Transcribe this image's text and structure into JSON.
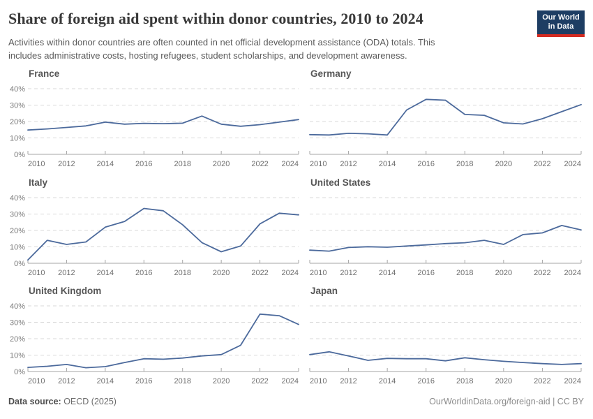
{
  "header": {
    "title": "Share of foreign aid spent within donor countries, 2010 to 2024",
    "subtitle_line1": "Activities within donor countries are often counted in net official development assistance (ODA) totals. This",
    "subtitle_line2": "includes administrative costs, hosting refugees, student scholarships, and development awareness."
  },
  "logo": {
    "line1": "Our World",
    "line2": "in Data",
    "bg_color": "#1d3d63",
    "accent_color": "#d42b21"
  },
  "footer": {
    "source_label": "Data source:",
    "source_value": " OECD (2025)",
    "attribution": "OurWorldinData.org/foreign-aid | CC BY"
  },
  "chart_data": {
    "type": "line",
    "layout": "small multiples, 2 columns x 3 rows",
    "unit": "%",
    "x": [
      2010,
      2011,
      2012,
      2013,
      2014,
      2015,
      2016,
      2017,
      2018,
      2019,
      2020,
      2021,
      2022,
      2023,
      2024
    ],
    "x_tick_labels": [
      "2010",
      "2012",
      "2014",
      "2016",
      "2018",
      "2020",
      "2022",
      "2024"
    ],
    "y_ticks": [
      0,
      10,
      20,
      30,
      40
    ],
    "y_tick_labels": [
      "0%",
      "10%",
      "20%",
      "30%",
      "40%"
    ],
    "ylim": [
      0,
      40
    ],
    "grid": "horizontal dashed gridlines, solid x axis",
    "line_color": "#4c6a9c",
    "axis_color": "#a6a6a6",
    "grid_color": "#d8d8d8",
    "tick_label_color": "#6e6e6e",
    "series": [
      {
        "name": "France",
        "values": [
          14.8,
          15.5,
          16.4,
          17.3,
          19.6,
          18.4,
          18.9,
          18.7,
          19.0,
          23.3,
          18.4,
          17.1,
          18.1,
          19.6,
          21.2
        ]
      },
      {
        "name": "Germany",
        "values": [
          12.0,
          11.8,
          12.8,
          12.5,
          11.8,
          27.0,
          33.5,
          33.0,
          24.3,
          23.8,
          19.2,
          18.5,
          21.7,
          26.0,
          30.3
        ]
      },
      {
        "name": "Italy",
        "values": [
          2.0,
          14.0,
          11.5,
          13.0,
          22.0,
          25.5,
          33.4,
          32.0,
          23.5,
          12.6,
          7.0,
          10.5,
          24.0,
          30.5,
          29.5
        ]
      },
      {
        "name": "United States",
        "values": [
          8.0,
          7.4,
          9.6,
          10.1,
          9.8,
          10.5,
          11.2,
          12.0,
          12.5,
          14.0,
          11.5,
          17.5,
          18.5,
          23.0,
          20.3
        ]
      },
      {
        "name": "United Kingdom",
        "values": [
          2.5,
          3.2,
          4.3,
          2.3,
          3.0,
          5.5,
          7.8,
          7.5,
          8.2,
          9.5,
          10.3,
          16.0,
          35.0,
          34.0,
          28.7
        ]
      },
      {
        "name": "Japan",
        "values": [
          10.3,
          12.0,
          9.5,
          6.8,
          8.0,
          7.8,
          7.8,
          6.5,
          8.4,
          7.2,
          6.2,
          5.5,
          4.8,
          4.3,
          4.8
        ]
      }
    ]
  }
}
